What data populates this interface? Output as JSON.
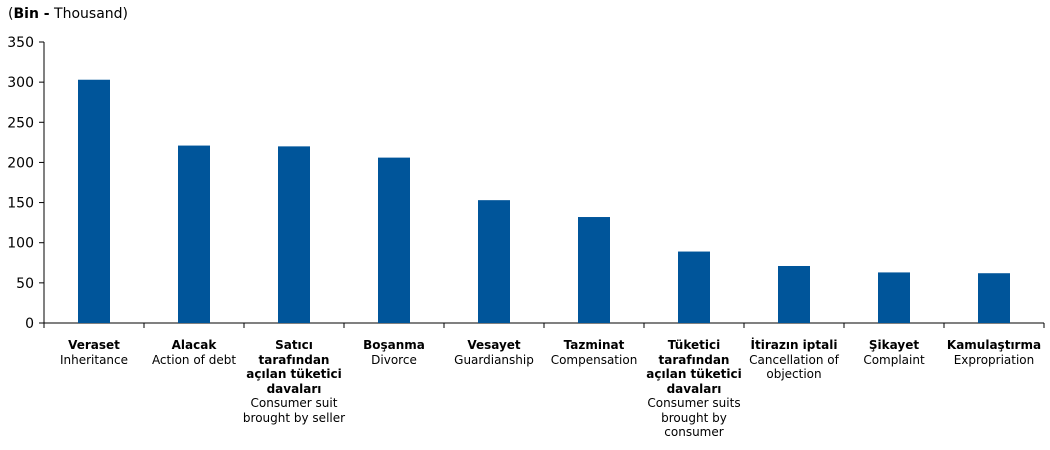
{
  "unit_label": {
    "open": "(",
    "bold": "Bin -",
    "rest": " Thousand)"
  },
  "chart_data": {
    "type": "bar",
    "categories": [
      {
        "tr": "Veraset",
        "en": "Inheritance"
      },
      {
        "tr": "Alacak",
        "en": "Action of debt"
      },
      {
        "tr": "Satıcı tarafından açılan tüketici davaları",
        "en": "Consumer suit brought by seller"
      },
      {
        "tr": "Boşanma",
        "en": "Divorce"
      },
      {
        "tr": "Vesayet",
        "en": "Guardianship"
      },
      {
        "tr": "Tazminat",
        "en": "Compensation"
      },
      {
        "tr": "Tüketici tarafından açılan tüketici davaları",
        "en": "Consumer suits brought by consumer"
      },
      {
        "tr": "İtirazın iptali",
        "en": "Cancellation of objection"
      },
      {
        "tr": "Şikayet",
        "en": "Complaint"
      },
      {
        "tr": "Kamulaştırma",
        "en": "Expropriation"
      }
    ],
    "values": [
      303,
      221,
      220,
      206,
      153,
      132,
      89,
      71,
      63,
      62
    ],
    "ylim": [
      0,
      350
    ],
    "yticks": [
      0,
      50,
      100,
      150,
      200,
      250,
      300,
      350
    ],
    "bar_color": "#00559A",
    "grid": false
  }
}
